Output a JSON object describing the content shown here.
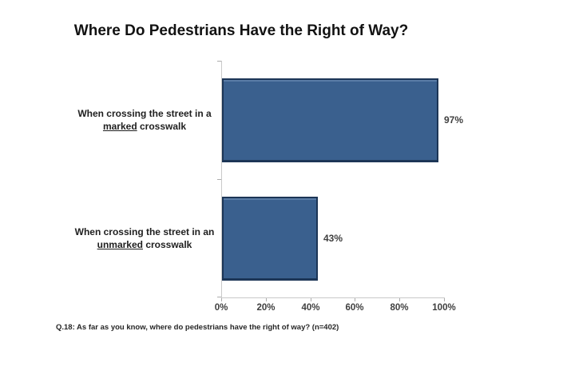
{
  "chart_data": {
    "type": "bar",
    "orientation": "horizontal",
    "title": "Where Do Pedestrians Have the Right of Way?",
    "categories": [
      "When crossing the street in a marked crosswalk",
      "When crossing the street in an unmarked crosswalk"
    ],
    "category_lines": [
      {
        "line1": "When crossing the street in a",
        "underlined": "marked",
        "rest": " crosswalk"
      },
      {
        "line1": "When crossing the street in an",
        "underlined": "unmarked",
        "rest": " crosswalk"
      }
    ],
    "values": [
      97,
      43
    ],
    "value_labels": [
      "97%",
      "43%"
    ],
    "xlim": [
      0,
      100
    ],
    "x_ticks": [
      "0%",
      "20%",
      "40%",
      "60%",
      "80%",
      "100%"
    ],
    "x_tick_values": [
      0,
      20,
      40,
      60,
      80,
      100
    ],
    "grid": false,
    "legend": false,
    "footnote": "Q.18: As far as you know, where do pedestrians have the right of way? (n=402)",
    "colors": {
      "bar_fill": "#3A608E",
      "bar_border": "#1C3556",
      "bar_highlight": "#5A7CA6",
      "axis_line": "#C9C9C9",
      "tick_mark": "#ADADAD",
      "label_text": "#3F3F3F",
      "title_text": "#121212",
      "background": "#FFFFFF"
    }
  }
}
